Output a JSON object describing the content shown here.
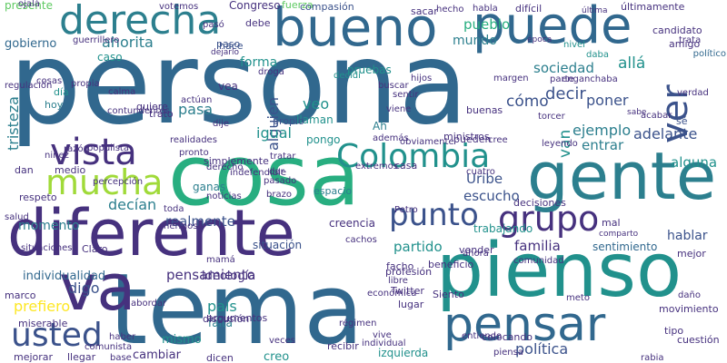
{
  "palette": {
    "c1": "#2c7f8e",
    "c2": "#3b528b",
    "c3": "#46317e",
    "c4": "#21918c",
    "c5": "#5ec962",
    "c6": "#a0da39",
    "c7": "#fde725",
    "c8": "#31688e",
    "c9": "#440154",
    "c10": "#28ae80"
  },
  "words": [
    "persona",
    "cosa",
    "tema",
    "diferente",
    "pienso",
    "gente",
    "bueno",
    "va",
    "puede",
    "derecha",
    "pensar",
    "usted",
    "mucha",
    "vista",
    "Colombia",
    "punto",
    "grupo",
    "ver",
    "presente",
    "fuerza",
    "gobierno",
    "ahorita",
    "mundo",
    "pueblo",
    "sociedad",
    "allá",
    "decir",
    "poner",
    "ejemplo",
    "adelante",
    "tristeza",
    "alguien",
    "veo",
    "pasa",
    "cómo",
    "igual",
    "van",
    "entrar",
    "alguna",
    "Uribe",
    "escucho",
    "decían",
    "realmente",
    "situación",
    "familia",
    "hablar",
    "sentimiento",
    "trabajando",
    "partido",
    "pensamiento",
    "individualidad",
    "digo",
    "prefiero",
    "país",
    "ideología",
    "política",
    "izquierda",
    "creo",
    "cambiar",
    "falta",
    "mismo",
    "momento",
    "creencia",
    "espacio",
    "ganas",
    "pruebas",
    "Congreso",
    "forma",
    "caso",
    "día",
    "hoy",
    "Ah",
    "pongo",
    "llaman",
    "propio",
    "vea",
    "paso",
    "hace",
    "compasión",
    "sacar",
    "hecho",
    "habla",
    "última",
    "últimamente",
    "candidato",
    "amigo",
    "trata",
    "nivel",
    "político",
    "daba",
    "época",
    "difícil",
    "votemos",
    "debe",
    "pasó",
    "dejarlo",
    "decidí",
    "hijos",
    "buscar",
    "sentir",
    "viene",
    "torcer",
    "sabe",
    "verdad",
    "sé",
    "leyendo",
    "cree",
    "obviamente",
    "realidades",
    "derecho",
    "dar",
    "pasado",
    "brazo",
    "extremos",
    "cuatro",
    "casa",
    "mal",
    "comparto",
    "mejor",
    "base",
    "llegar",
    "mejorar",
    "miserable",
    "marco",
    "salud",
    "respeto",
    "dan",
    "medio",
    "razón",
    "niñez",
    "toda",
    "hermoso",
    "mamá",
    "Claro",
    "haber",
    "situaciones",
    "decisiones",
    "Petro",
    "cachos",
    "vender",
    "comunidad",
    "ahora",
    "meto",
    "daño",
    "movimiento",
    "tipo",
    "cuestión",
    "rabia",
    "piensa",
    "colocando",
    "entiendo",
    "Siento",
    "individual",
    "régimen",
    "recibir",
    "dicen",
    "comunista",
    "discusión",
    "argumentos",
    "veces",
    "abordar",
    "lugar",
    "profesión",
    "beneficio",
    "económica",
    "libre",
    "Twitter",
    "facho",
    "vive",
    "indefendible",
    "tratar",
    "pronto",
    "percepción",
    "populista",
    "quiere",
    "trato",
    "actúan",
    "dije",
    "propia",
    "margen",
    "parte",
    "además",
    "ministros",
    "pueden",
    "buenas",
    "calma",
    "cosas",
    "ojalá",
    "guerrillero",
    "regulación",
    "droga",
    "enganchaba",
    "acabar",
    "simplemente",
    "noticias",
    "contundentes",
    "intereses",
    "ley",
    "llorar",
    "acaba"
  ]
}
